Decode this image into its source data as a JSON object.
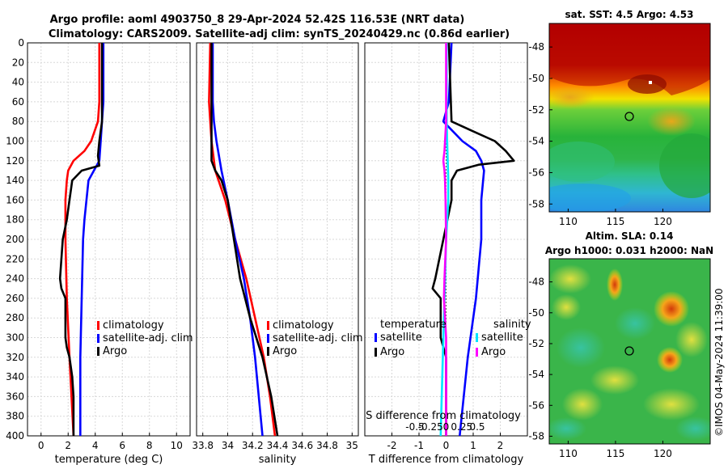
{
  "title_line1": "Argo profile: aoml 4903750_8 29-Apr-2024 52.42S 116.53E (NRT data)",
  "title_line2": "Climatology: CARS2009. Satellite-adj clim: synTS_20240429.nc (0.86d earlier)",
  "sst_title": "sat. SST: 4.5 Argo: 4.53",
  "sla_title1": "Altim. SLA: 0.14",
  "sla_title2": "Argo h1000: 0.031 h2000: NaN",
  "watermark": "©IMOS 04-May-2024 11:39:00",
  "colors": {
    "climatology": "#ff0000",
    "satellite": "#0000ff",
    "argo": "#000000",
    "sat_salinity": "#00e5ff",
    "argo_salinity": "#ff00ff"
  },
  "legend": {
    "climatology": "climatology",
    "satellite_adj": "satellite-adj. clim",
    "argo": "Argo",
    "temperature": "temperature",
    "salinity": "salinity",
    "satellite": "satellite"
  },
  "chart_data": [
    {
      "type": "line",
      "title": "",
      "xlabel": "temperature (deg C)",
      "ylabel": "",
      "xlim": [
        -1,
        11
      ],
      "ylim": [
        400,
        0
      ],
      "xticks": [
        "0",
        "2",
        "4",
        "6",
        "8",
        "10"
      ],
      "yticks": [
        "0",
        "20",
        "40",
        "60",
        "80",
        "100",
        "120",
        "140",
        "160",
        "180",
        "200",
        "220",
        "240",
        "260",
        "280",
        "300",
        "320",
        "340",
        "360",
        "380",
        "400"
      ],
      "series": [
        {
          "name": "climatology",
          "depth": [
            0,
            60,
            80,
            100,
            110,
            120,
            130,
            140,
            160,
            200,
            260,
            320,
            400
          ],
          "values": [
            4.3,
            4.3,
            4.2,
            3.7,
            3.2,
            2.4,
            2.0,
            1.9,
            1.8,
            1.8,
            1.9,
            2.1,
            2.4
          ]
        },
        {
          "name": "satellite-adj. clim",
          "depth": [
            0,
            60,
            80,
            100,
            120,
            140,
            180,
            200,
            260,
            320,
            400
          ],
          "values": [
            4.6,
            4.6,
            4.5,
            4.4,
            4.3,
            3.5,
            3.2,
            3.1,
            3.0,
            2.9,
            2.9
          ]
        },
        {
          "name": "Argo",
          "depth": [
            0,
            80,
            100,
            115,
            125,
            130,
            140,
            160,
            180,
            200,
            220,
            240,
            250,
            260,
            280,
            300,
            310,
            320,
            340,
            360,
            380,
            400
          ],
          "values": [
            4.5,
            4.5,
            4.3,
            4.2,
            4.3,
            3.0,
            2.3,
            2.1,
            1.9,
            1.6,
            1.5,
            1.4,
            1.5,
            1.8,
            1.8,
            1.8,
            1.9,
            2.1,
            2.3,
            2.4,
            2.4,
            2.4
          ]
        }
      ]
    },
    {
      "type": "line",
      "title": "",
      "xlabel": "salinity",
      "ylabel": "",
      "xlim": [
        33.75,
        35.05
      ],
      "xticks": [
        "33.8",
        "34",
        "34.2",
        "34.4",
        "34.6",
        "34.8",
        "35"
      ],
      "series": [
        {
          "name": "climatology",
          "depth": [
            0,
            60,
            80,
            100,
            130,
            160,
            200,
            240,
            280,
            320,
            360,
            400
          ],
          "values": [
            33.86,
            33.85,
            33.86,
            33.87,
            33.9,
            33.98,
            34.06,
            34.15,
            34.22,
            34.29,
            34.34,
            34.38
          ]
        },
        {
          "name": "satellite-adj. clim",
          "depth": [
            0,
            60,
            80,
            100,
            130,
            160,
            200,
            240,
            280,
            320,
            360,
            400
          ],
          "values": [
            33.88,
            33.88,
            33.89,
            33.91,
            33.95,
            34.0,
            34.06,
            34.13,
            34.18,
            34.22,
            34.25,
            34.28
          ]
        },
        {
          "name": "Argo",
          "depth": [
            0,
            100,
            120,
            130,
            140,
            160,
            200,
            240,
            280,
            320,
            360,
            400
          ],
          "values": [
            33.87,
            33.87,
            33.87,
            33.9,
            33.95,
            34.0,
            34.05,
            34.1,
            34.18,
            34.28,
            34.35,
            34.4
          ]
        }
      ]
    },
    {
      "type": "line",
      "title": "",
      "xlabel": "T difference from climatology",
      "xlabel_top": "S difference from climatology",
      "xlim": [
        -3,
        3
      ],
      "xticks": [
        "-2",
        "-1",
        "0",
        "1",
        "2"
      ],
      "xticks_top": [
        "-0.5",
        "-0.25",
        "0",
        "0.25",
        "0.5"
      ],
      "series": [
        {
          "name": "temperature satellite",
          "depth": [
            0,
            60,
            80,
            100,
            110,
            120,
            130,
            160,
            200,
            260,
            320,
            400
          ],
          "values": [
            0.2,
            0.1,
            -0.1,
            0.6,
            1.1,
            1.3,
            1.4,
            1.3,
            1.3,
            1.1,
            0.8,
            0.5
          ]
        },
        {
          "name": "temperature Argo",
          "depth": [
            0,
            80,
            90,
            100,
            110,
            120,
            124,
            130,
            140,
            160,
            200,
            240,
            250,
            260,
            300,
            320,
            340,
            400
          ],
          "values": [
            0.1,
            0.2,
            1.0,
            1.8,
            2.2,
            2.5,
            1.2,
            0.4,
            0.2,
            0.2,
            -0.1,
            -0.4,
            -0.5,
            -0.2,
            -0.2,
            0,
            0,
            0
          ]
        },
        {
          "name": "salinity satellite",
          "depth": [
            0,
            80,
            100,
            120,
            140,
            160,
            200,
            240,
            300,
            360,
            400
          ],
          "values": [
            0.01,
            0.01,
            0.02,
            0.03,
            0.04,
            0.04,
            0.0,
            -0.02,
            -0.05,
            -0.08,
            -0.1
          ]
        },
        {
          "name": "salinity Argo",
          "depth": [
            0,
            80,
            100,
            110,
            120,
            130,
            140,
            160,
            200,
            240,
            260,
            280,
            300,
            320,
            360,
            400
          ],
          "values": [
            0.0,
            0.0,
            -0.02,
            -0.03,
            -0.05,
            -0.03,
            -0.02,
            -0.01,
            0.0,
            -0.03,
            -0.04,
            -0.02,
            0.0,
            0.0,
            0.0,
            0.0
          ]
        }
      ]
    },
    {
      "type": "heatmap",
      "title": "sat. SST: 4.5 Argo: 4.53",
      "xticks": [
        "110",
        "115",
        "120"
      ],
      "yticks": [
        "-48",
        "-50",
        "-52",
        "-54",
        "-56",
        "-58"
      ],
      "xlim": [
        108,
        125
      ],
      "ylim": [
        -58.5,
        -46.5
      ],
      "argo_position": [
        116.53,
        -52.42
      ]
    },
    {
      "type": "heatmap",
      "title": "Argo h1000: 0.031 h2000: NaN",
      "xticks": [
        "110",
        "115",
        "120"
      ],
      "yticks": [
        "-48",
        "-50",
        "-52",
        "-54",
        "-56",
        "-58"
      ],
      "xlim": [
        108,
        125
      ],
      "ylim": [
        -58.5,
        -46.5
      ],
      "argo_position": [
        116.53,
        -52.42
      ]
    }
  ]
}
